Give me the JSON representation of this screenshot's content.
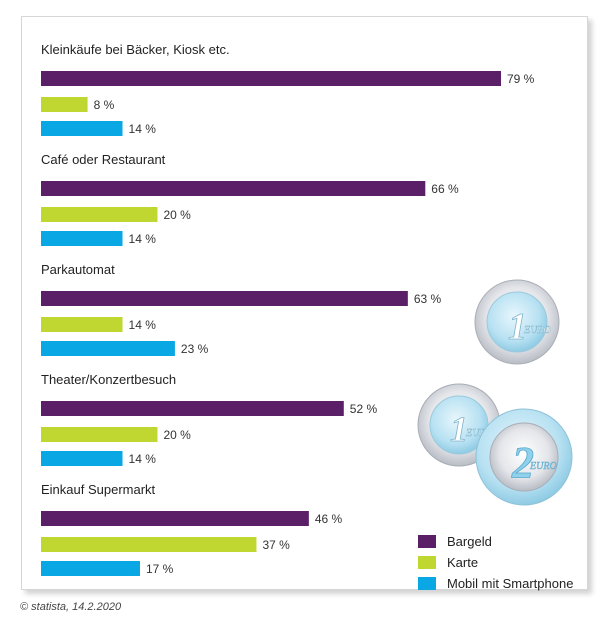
{
  "chart_data": {
    "type": "bar",
    "orientation": "horizontal",
    "categories": [
      "Kleinkäufe bei Bäcker, Kiosk etc.",
      "Café oder Restaurant",
      "Parkautomat",
      "Theater/Konzertbesuch",
      "Einkauf Supermarkt"
    ],
    "series": [
      {
        "name": "Bargeld",
        "color": "#5a1f67",
        "values": [
          79,
          66,
          63,
          52,
          46
        ]
      },
      {
        "name": "Karte",
        "color": "#bfd730",
        "values": [
          8,
          20,
          14,
          20,
          37
        ]
      },
      {
        "name": "Mobil mit Smartphone",
        "color": "#0aa7e5",
        "values": [
          14,
          14,
          23,
          14,
          17
        ]
      }
    ],
    "value_suffix": " %",
    "xlim": [
      0,
      100
    ],
    "grid": false,
    "legend_position": "bottom-right"
  },
  "decorations": {
    "coin_1": {
      "value": "1",
      "label": "EURO"
    },
    "coin_2": {
      "value": "2",
      "label": "EURO"
    }
  },
  "source": "© statista, 14.2.2020"
}
